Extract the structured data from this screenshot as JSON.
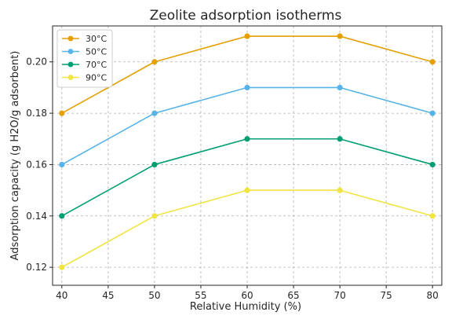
{
  "chart_data": {
    "type": "line",
    "title": "Zeolite adsorption isotherms",
    "xlabel": "Relative Humidity (%)",
    "ylabel": "Adsorption capacity (g H2O/g adsorbent)",
    "x": [
      40,
      50,
      60,
      70,
      80
    ],
    "xlim": [
      39,
      81
    ],
    "ylim": [
      0.113,
      0.214
    ],
    "xticks": [
      40,
      45,
      50,
      55,
      60,
      65,
      70,
      75,
      80
    ],
    "yticks": [
      0.12,
      0.14,
      0.16,
      0.18,
      0.2
    ],
    "ytick_labels": [
      "0.12",
      "0.14",
      "0.16",
      "0.18",
      "0.20"
    ],
    "grid": true,
    "legend_position": "top-left",
    "series": [
      {
        "name": "30°C",
        "color": "#E69F00",
        "values": [
          0.18,
          0.2,
          0.21,
          0.21,
          0.2
        ]
      },
      {
        "name": "50°C",
        "color": "#56B4E9",
        "values": [
          0.16,
          0.18,
          0.19,
          0.19,
          0.18
        ]
      },
      {
        "name": "70°C",
        "color": "#009E73",
        "values": [
          0.14,
          0.16,
          0.17,
          0.17,
          0.16
        ]
      },
      {
        "name": "90°C",
        "color": "#F0E442",
        "values": [
          0.12,
          0.14,
          0.15,
          0.15,
          0.14
        ]
      }
    ]
  }
}
